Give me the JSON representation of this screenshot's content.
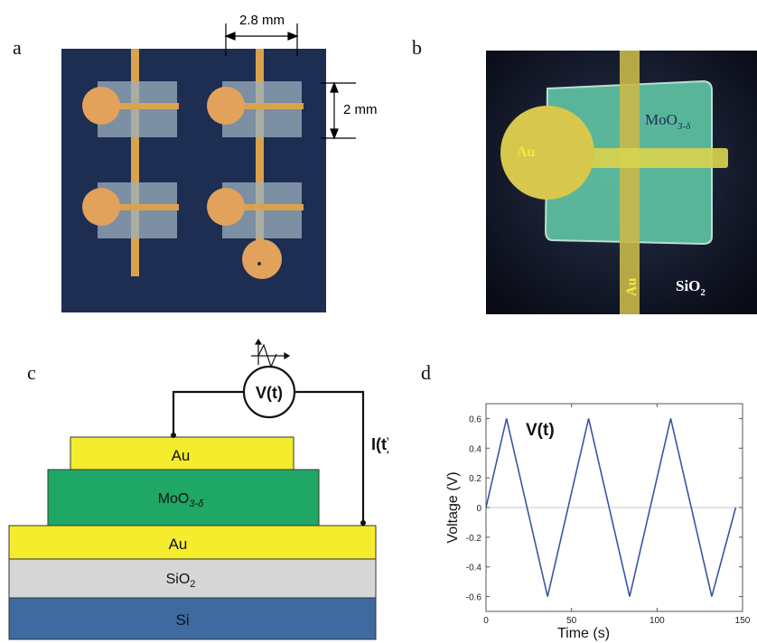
{
  "panels": {
    "a": {
      "letter": "a",
      "dim_width": "2.8 mm",
      "dim_height": "2 mm"
    },
    "b": {
      "letter": "b",
      "label_au_left": "Au",
      "label_au_vertical": "Au",
      "label_moo_base": "MoO",
      "label_moo_sub": "3-δ",
      "label_sio2_base": "SiO",
      "label_sio2_sub": "2"
    },
    "c": {
      "letter": "c",
      "source_label": "V(t)",
      "current_label": "I(t)",
      "layers": {
        "au_top": "Au",
        "moo_base": "MoO",
        "moo_sub": "3-δ",
        "au_bottom": "Au",
        "sio2_base": "SiO",
        "sio2_sub": "2",
        "si": "Si"
      },
      "colors": {
        "au": "#f5ec2e",
        "moo": "#1fa865",
        "sio2": "#d6d6d6",
        "si": "#3e6aa0"
      }
    },
    "d": {
      "letter": "d"
    }
  },
  "chart_data": {
    "type": "line",
    "title": "V(t)",
    "xlabel": "Time (s)",
    "ylabel": "Voltage (V)",
    "xlim": [
      0,
      150
    ],
    "ylim": [
      -0.7,
      0.7
    ],
    "xticks": [
      0,
      50,
      100,
      150
    ],
    "yticks": [
      -0.6,
      -0.4,
      -0.2,
      0,
      0.2,
      0.4,
      0.6
    ],
    "grid": false,
    "zero_line": true,
    "series": [
      {
        "color": "#3a55a4",
        "x": [
          0,
          12,
          36,
          60,
          84,
          108,
          132,
          146
        ],
        "y": [
          0,
          0.6,
          -0.6,
          0.6,
          -0.6,
          0.6,
          -0.6,
          0.0
        ]
      }
    ]
  }
}
